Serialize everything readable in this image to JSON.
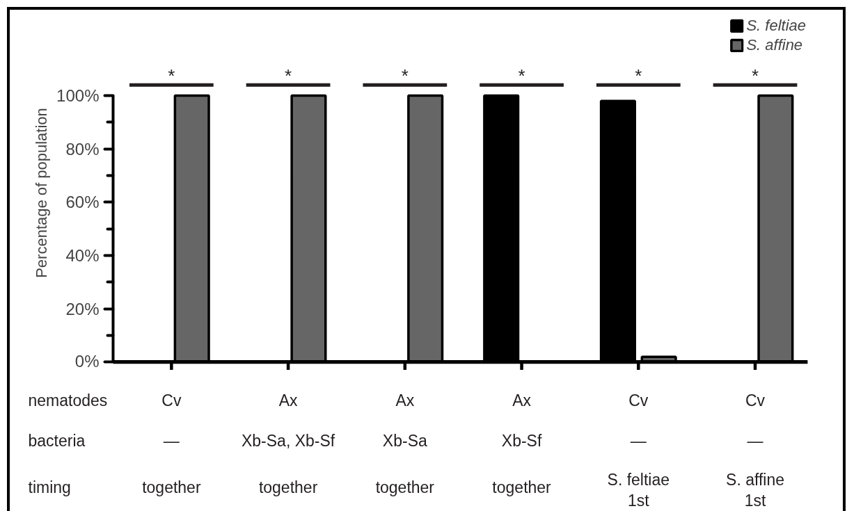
{
  "chart_data": {
    "type": "bar",
    "ylabel": "Percentage of population",
    "categories": [
      "Cv\n—\ntogether",
      "Ax\nXb-Sa, Xb-Sf\ntogether",
      "Ax\nXb-Sa\ntogether",
      "Ax\nXb-Sf\ntogether",
      "Cv\n—\nS. feltiae\n1st",
      "Cv\n—\nS. affine\n1st"
    ],
    "series": [
      {
        "name": "S. feltiae",
        "color": "#000000",
        "values": [
          0,
          0,
          0,
          100,
          98,
          0
        ]
      },
      {
        "name": "S. affine",
        "color": "#666666",
        "values": [
          100,
          100,
          100,
          0,
          2,
          100
        ]
      }
    ],
    "ylim": [
      0,
      100
    ],
    "yticks": [
      {
        "value": 0,
        "label": "0%"
      },
      {
        "value": 10,
        "label": null
      },
      {
        "value": 20,
        "label": "20%"
      },
      {
        "value": 30,
        "label": null
      },
      {
        "value": 40,
        "label": "40%"
      },
      {
        "value": 50,
        "label": null
      },
      {
        "value": 60,
        "label": "60%"
      },
      {
        "value": 70,
        "label": null
      },
      {
        "value": 80,
        "label": "80%"
      },
      {
        "value": 90,
        "label": null
      },
      {
        "value": 100,
        "label": "100%"
      }
    ],
    "legend": "top right",
    "annotations": [
      "*",
      "*",
      "*",
      "*",
      "*",
      "*",
      "nematodes",
      "bacteria",
      "timing"
    ]
  }
}
